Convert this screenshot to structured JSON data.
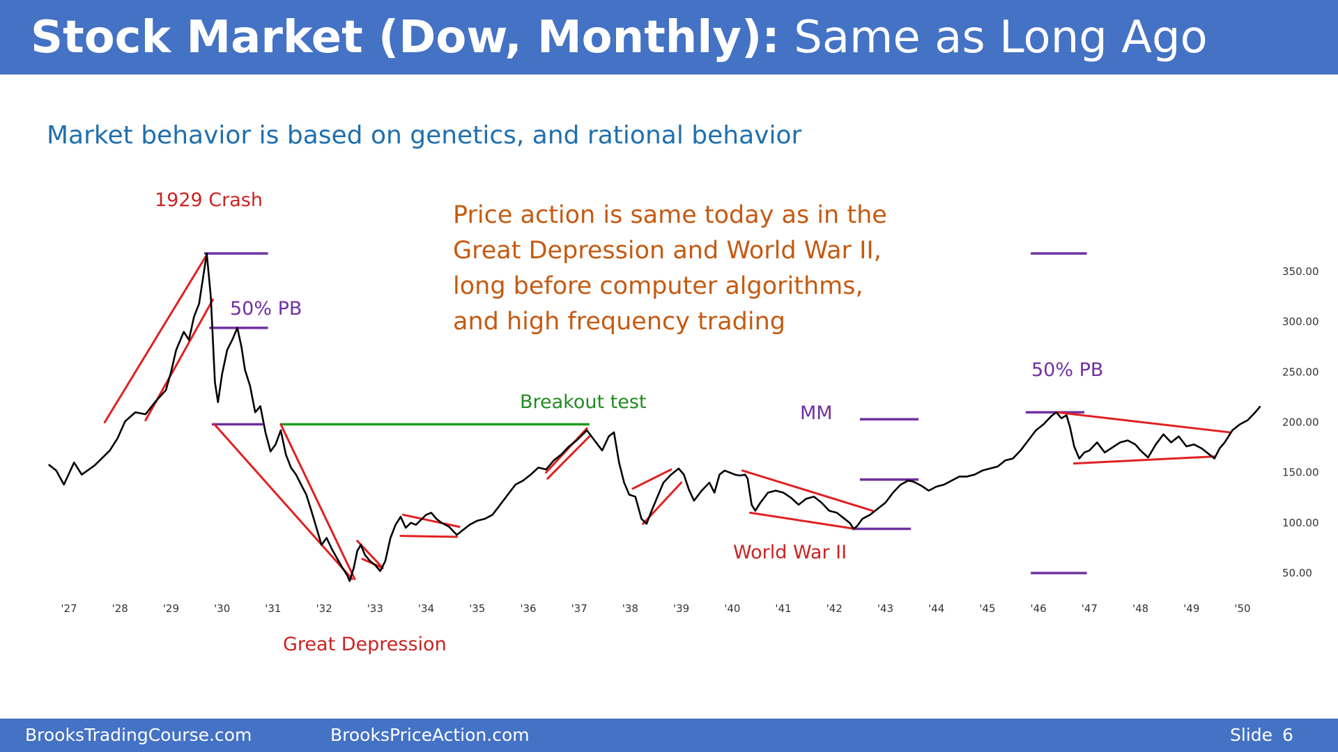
{
  "header": {
    "title_bold": "Stock Market (Dow, Monthly):",
    "title_light": "Same as Long Ago"
  },
  "subtitle": "Market behavior is based on genetics, and rational behavior",
  "callout": [
    "Price action is same today as in the",
    "Great Depression and World War II,",
    "long before computer algorithms,",
    "and high frequency trading"
  ],
  "annotations": {
    "crash_1929": "1929 Crash",
    "pb_50_left": "50% PB",
    "breakout_test": "Breakout test",
    "mm": "MM",
    "pb_50_right": "50% PB",
    "world_war_ii": "World War II",
    "great_depression": "Great Depression"
  },
  "footer": {
    "site1": "BrooksTradingCourse.com",
    "site2": "BrooksPriceAction.com",
    "slide_label": "Slide",
    "slide_number": "6"
  },
  "colors": {
    "header_bg": "#4472c4",
    "price_line": "#000000",
    "trend_lines": "#e02020",
    "measure_lines": "#7030a0",
    "breakout_line": "#1e9a1e",
    "subtitle": "#1f6fae",
    "callout": "#c55a11",
    "red_label": "#cc2222",
    "green_label": "#228b22",
    "purple_label": "#7030a0"
  },
  "chart_data": {
    "type": "line",
    "title": "",
    "xlabel": "",
    "ylabel": "",
    "x_ticks": [
      "'27",
      "'28",
      "'29",
      "'30",
      "'31",
      "'32",
      "'33",
      "'34",
      "'35",
      "'36",
      "'37",
      "'38",
      "'39",
      "'40",
      "'41",
      "'42",
      "'43",
      "'44",
      "'45",
      "'46",
      "'47",
      "'48",
      "'49",
      "'50"
    ],
    "y_ticks": [
      "350.00",
      "300.00",
      "250.00",
      "200.00",
      "150.00",
      "100.00",
      "50.00"
    ],
    "ylim": [
      40,
      370
    ],
    "xlim": [
      1926.6,
      1950.5
    ],
    "axis_side": "right",
    "grid": false,
    "series": [
      {
        "values": [
          [
            1926.6,
            158
          ],
          [
            1926.75,
            152
          ],
          [
            1926.9,
            138
          ],
          [
            1927.1,
            160
          ],
          [
            1927.25,
            148
          ],
          [
            1927.5,
            157
          ],
          [
            1927.8,
            172
          ],
          [
            1927.95,
            184
          ],
          [
            1928.1,
            201
          ],
          [
            1928.3,
            210
          ],
          [
            1928.5,
            208
          ],
          [
            1928.7,
            221
          ],
          [
            1928.9,
            232
          ],
          [
            1929.0,
            250
          ],
          [
            1929.1,
            272
          ],
          [
            1929.25,
            290
          ],
          [
            1929.35,
            282
          ],
          [
            1929.45,
            305
          ],
          [
            1929.55,
            318
          ],
          [
            1929.63,
            345
          ],
          [
            1929.7,
            368
          ],
          [
            1929.78,
            325
          ],
          [
            1929.86,
            240
          ],
          [
            1929.92,
            220
          ],
          [
            1930.0,
            248
          ],
          [
            1930.1,
            272
          ],
          [
            1930.2,
            282
          ],
          [
            1930.3,
            294
          ],
          [
            1930.38,
            275
          ],
          [
            1930.45,
            252
          ],
          [
            1930.55,
            236
          ],
          [
            1930.65,
            210
          ],
          [
            1930.75,
            216
          ],
          [
            1930.85,
            190
          ],
          [
            1930.95,
            171
          ],
          [
            1931.05,
            178
          ],
          [
            1931.15,
            192
          ],
          [
            1931.25,
            168
          ],
          [
            1931.35,
            155
          ],
          [
            1931.45,
            148
          ],
          [
            1931.55,
            138
          ],
          [
            1931.65,
            128
          ],
          [
            1931.75,
            112
          ],
          [
            1931.85,
            95
          ],
          [
            1931.95,
            78
          ],
          [
            1932.05,
            85
          ],
          [
            1932.15,
            74
          ],
          [
            1932.25,
            65
          ],
          [
            1932.35,
            56
          ],
          [
            1932.45,
            48
          ],
          [
            1932.5,
            42
          ],
          [
            1932.58,
            55
          ],
          [
            1932.65,
            72
          ],
          [
            1932.72,
            78
          ],
          [
            1932.8,
            68
          ],
          [
            1932.9,
            62
          ],
          [
            1933.0,
            58
          ],
          [
            1933.1,
            52
          ],
          [
            1933.2,
            62
          ],
          [
            1933.3,
            85
          ],
          [
            1933.4,
            98
          ],
          [
            1933.5,
            106
          ],
          [
            1933.6,
            95
          ],
          [
            1933.7,
            100
          ],
          [
            1933.8,
            98
          ],
          [
            1933.9,
            103
          ],
          [
            1934.0,
            108
          ],
          [
            1934.1,
            110
          ],
          [
            1934.2,
            104
          ],
          [
            1934.3,
            100
          ],
          [
            1934.45,
            96
          ],
          [
            1934.6,
            88
          ],
          [
            1934.7,
            92
          ],
          [
            1934.85,
            98
          ],
          [
            1935.0,
            102
          ],
          [
            1935.15,
            104
          ],
          [
            1935.3,
            108
          ],
          [
            1935.45,
            118
          ],
          [
            1935.6,
            128
          ],
          [
            1935.75,
            138
          ],
          [
            1935.9,
            142
          ],
          [
            1936.05,
            148
          ],
          [
            1936.2,
            155
          ],
          [
            1936.35,
            153
          ],
          [
            1936.5,
            162
          ],
          [
            1936.65,
            168
          ],
          [
            1936.8,
            176
          ],
          [
            1936.95,
            182
          ],
          [
            1937.05,
            187
          ],
          [
            1937.15,
            192
          ],
          [
            1937.3,
            182
          ],
          [
            1937.45,
            172
          ],
          [
            1937.58,
            186
          ],
          [
            1937.68,
            190
          ],
          [
            1937.78,
            160
          ],
          [
            1937.88,
            140
          ],
          [
            1937.98,
            128
          ],
          [
            1938.1,
            126
          ],
          [
            1938.22,
            104
          ],
          [
            1938.32,
            99
          ],
          [
            1938.42,
            112
          ],
          [
            1938.55,
            128
          ],
          [
            1938.65,
            140
          ],
          [
            1938.8,
            148
          ],
          [
            1938.95,
            154
          ],
          [
            1939.05,
            148
          ],
          [
            1939.15,
            133
          ],
          [
            1939.25,
            122
          ],
          [
            1939.4,
            132
          ],
          [
            1939.55,
            140
          ],
          [
            1939.65,
            130
          ],
          [
            1939.75,
            148
          ],
          [
            1939.85,
            152
          ],
          [
            1939.95,
            150
          ],
          [
            1940.05,
            148
          ],
          [
            1940.15,
            147
          ],
          [
            1940.25,
            148
          ],
          [
            1940.3,
            144
          ],
          [
            1940.38,
            118
          ],
          [
            1940.45,
            112
          ],
          [
            1940.55,
            120
          ],
          [
            1940.7,
            130
          ],
          [
            1940.85,
            132
          ],
          [
            1941.0,
            130
          ],
          [
            1941.15,
            125
          ],
          [
            1941.3,
            118
          ],
          [
            1941.45,
            124
          ],
          [
            1941.6,
            126
          ],
          [
            1941.75,
            120
          ],
          [
            1941.9,
            112
          ],
          [
            1942.05,
            110
          ],
          [
            1942.15,
            106
          ],
          [
            1942.3,
            100
          ],
          [
            1942.38,
            94
          ],
          [
            1942.45,
            97
          ],
          [
            1942.55,
            104
          ],
          [
            1942.7,
            108
          ],
          [
            1942.85,
            114
          ],
          [
            1943.0,
            120
          ],
          [
            1943.15,
            130
          ],
          [
            1943.3,
            138
          ],
          [
            1943.45,
            142
          ],
          [
            1943.55,
            141
          ],
          [
            1943.7,
            137
          ],
          [
            1943.85,
            132
          ],
          [
            1944.0,
            136
          ],
          [
            1944.15,
            138
          ],
          [
            1944.3,
            142
          ],
          [
            1944.45,
            146
          ],
          [
            1944.6,
            146
          ],
          [
            1944.75,
            148
          ],
          [
            1944.9,
            152
          ],
          [
            1945.05,
            154
          ],
          [
            1945.2,
            156
          ],
          [
            1945.35,
            162
          ],
          [
            1945.5,
            164
          ],
          [
            1945.65,
            172
          ],
          [
            1945.8,
            182
          ],
          [
            1945.95,
            192
          ],
          [
            1946.1,
            198
          ],
          [
            1946.25,
            206
          ],
          [
            1946.35,
            210
          ],
          [
            1946.45,
            204
          ],
          [
            1946.55,
            207
          ],
          [
            1946.62,
            195
          ],
          [
            1946.7,
            176
          ],
          [
            1946.8,
            164
          ],
          [
            1946.9,
            170
          ],
          [
            1947.0,
            172
          ],
          [
            1947.15,
            180
          ],
          [
            1947.3,
            170
          ],
          [
            1947.45,
            175
          ],
          [
            1947.6,
            180
          ],
          [
            1947.75,
            182
          ],
          [
            1947.9,
            178
          ],
          [
            1948.0,
            172
          ],
          [
            1948.15,
            165
          ],
          [
            1948.3,
            178
          ],
          [
            1948.45,
            188
          ],
          [
            1948.6,
            180
          ],
          [
            1948.75,
            186
          ],
          [
            1948.9,
            176
          ],
          [
            1949.05,
            178
          ],
          [
            1949.2,
            174
          ],
          [
            1949.35,
            168
          ],
          [
            1949.45,
            164
          ],
          [
            1949.55,
            174
          ],
          [
            1949.65,
            180
          ],
          [
            1949.8,
            192
          ],
          [
            1949.95,
            198
          ],
          [
            1950.1,
            202
          ],
          [
            1950.25,
            210
          ],
          [
            1950.35,
            216
          ]
        ]
      }
    ]
  }
}
